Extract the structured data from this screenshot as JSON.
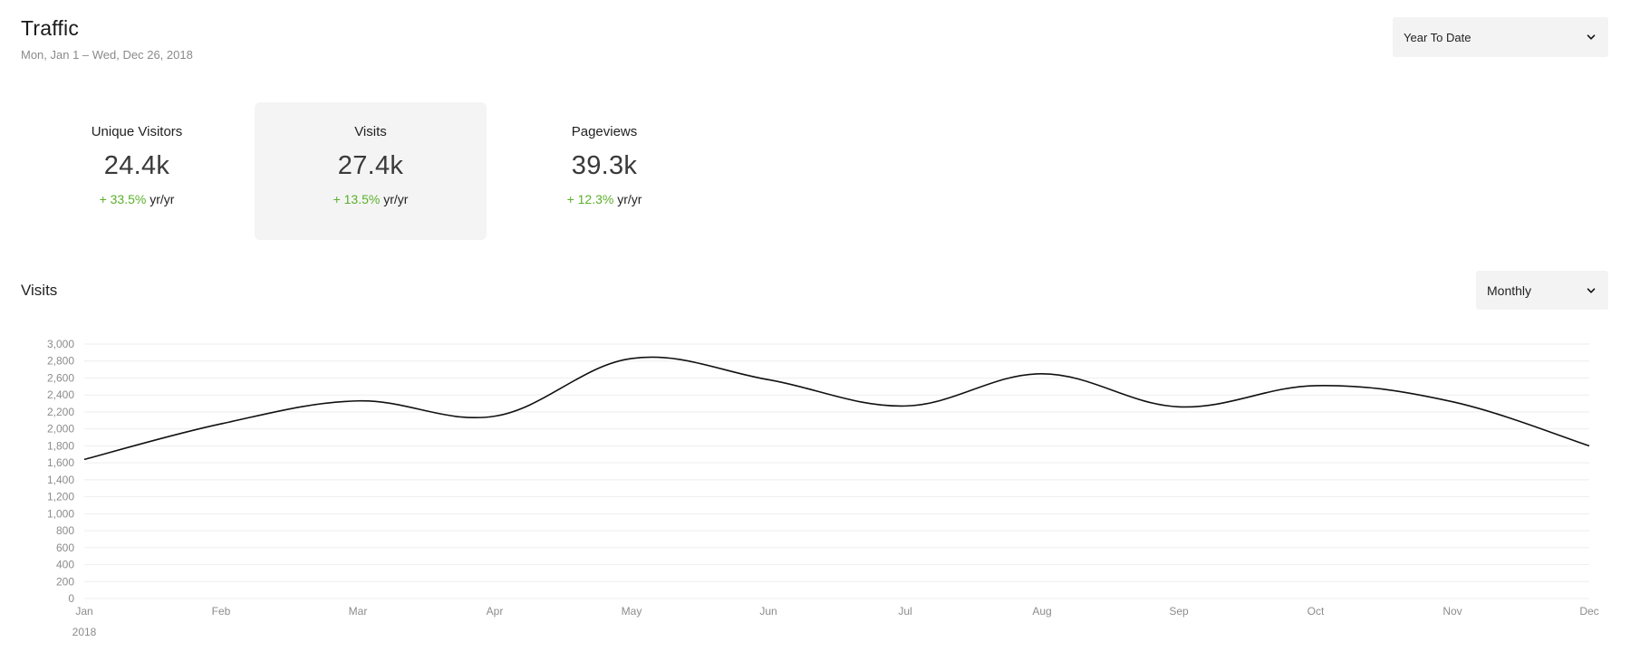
{
  "header": {
    "title": "Traffic",
    "date_range": "Mon, Jan 1 – Wed, Dec 26, 2018"
  },
  "range_select": {
    "value": "Year To Date",
    "icon": "chevron-down-icon"
  },
  "metrics": [
    {
      "label": "Unique Visitors",
      "value": "24.4k",
      "change": "+ 33.5%",
      "suffix": "yr/yr",
      "active": false
    },
    {
      "label": "Visits",
      "value": "27.4k",
      "change": "+ 13.5%",
      "suffix": "yr/yr",
      "active": true
    },
    {
      "label": "Pageviews",
      "value": "39.3k",
      "change": "+ 12.3%",
      "suffix": "yr/yr",
      "active": false
    }
  ],
  "colors": {
    "positive": "#5aaf2b",
    "line": "#111111",
    "grid": "#eeeeee",
    "active_card": "#f4f4f4"
  },
  "chart_section": {
    "title": "Visits",
    "interval_select": {
      "value": "Monthly",
      "icon": "chevron-down-icon"
    }
  },
  "chart_data": {
    "type": "line",
    "title": "",
    "xlabel": "",
    "ylabel": "",
    "x": [
      "Jan",
      "Feb",
      "Mar",
      "Apr",
      "May",
      "Jun",
      "Jul",
      "Aug",
      "Sep",
      "Oct",
      "Nov",
      "Dec"
    ],
    "year_label": "2018",
    "values": [
      1640,
      2060,
      2330,
      2150,
      2830,
      2580,
      2270,
      2650,
      2260,
      2510,
      2320,
      1800
    ],
    "ylim": [
      0,
      3000
    ],
    "y_ticks": [
      0,
      200,
      400,
      600,
      800,
      1000,
      1200,
      1400,
      1600,
      1800,
      2000,
      2200,
      2400,
      2600,
      2800,
      3000
    ],
    "y_tick_labels": [
      "0",
      "200",
      "400",
      "600",
      "800",
      "1,000",
      "1,200",
      "1,400",
      "1,600",
      "1,800",
      "2,000",
      "2,200",
      "2,400",
      "2,600",
      "2,800",
      "3,000"
    ],
    "grid": true,
    "legend": false
  }
}
